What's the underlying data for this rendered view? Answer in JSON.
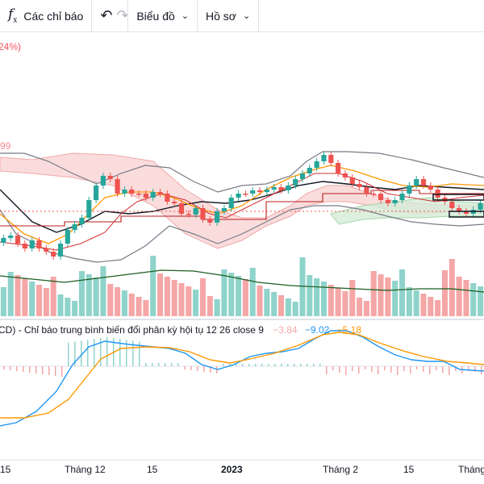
{
  "toolbar": {
    "indicators_label": "Các chỉ báo",
    "chart_type_label": "Biểu đồ",
    "profile_label": "Hồ sơ"
  },
  "icons": {
    "fx": "function-icon",
    "undo": "undo-icon",
    "redo": "redo-icon",
    "chevron": "chevron-down-icon"
  },
  "main_pane": {
    "top_label": "24%)",
    "ichimoku_label": "99"
  },
  "macd_pane": {
    "legend_prefix": "CD) - Chỉ báo trung bình biến đổi phân kỳ hội tụ 12 26 close 9",
    "histogram_value": "−3.84",
    "macd_value": "−9.02",
    "signal_value": "−5.18"
  },
  "x_axis": {
    "labels": [
      "15",
      "Tháng 12",
      "15",
      "2023",
      "Tháng 2",
      "15",
      "Tháng"
    ]
  },
  "colors": {
    "up": "#26a69a",
    "down": "#ef5350",
    "macd_line": "#2196f3",
    "signal_line": "#ff9800",
    "cloud_red": "#f7c5c5",
    "cloud_green": "#d5ecd8"
  }
}
